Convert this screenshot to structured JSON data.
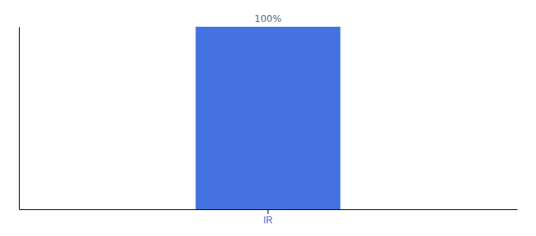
{
  "chart_data": {
    "type": "bar",
    "categories": [
      "IR"
    ],
    "values": [
      100
    ],
    "value_labels": [
      "100%"
    ],
    "data_labels": true,
    "color": "#4472e0",
    "ylim": [
      0,
      100
    ],
    "yticks": [],
    "tick_labels": "x"
  }
}
